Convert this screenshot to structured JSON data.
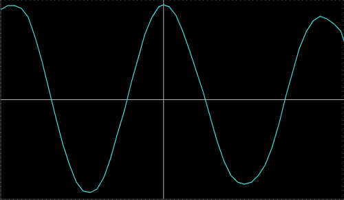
{
  "chart_data": {
    "type": "line",
    "x": [
      -4.09,
      -3.91,
      -3.74,
      -3.57,
      -3.4,
      -3.22,
      -3.05,
      -2.88,
      -2.71,
      -2.53,
      -2.36,
      -2.19,
      -2.02,
      -1.84,
      -1.67,
      -1.5,
      -1.33,
      -1.16,
      -0.98,
      -0.81,
      -0.64,
      -0.47,
      -0.29,
      -0.12,
      0,
      0.14,
      0.31,
      0.48,
      0.66,
      0.83,
      1.0,
      1.17,
      1.34,
      1.52,
      1.69,
      1.86,
      2.03,
      2.21,
      2.38,
      2.55,
      2.72,
      2.9,
      3.07,
      3.24,
      3.41,
      3.59,
      3.76,
      3.93,
      4.1,
      4.28,
      4.45,
      4.53
    ],
    "values": [
      2.26,
      2.36,
      2.36,
      2.29,
      2.07,
      1.55,
      0.95,
      0.26,
      -0.43,
      -1.12,
      -1.64,
      -2.07,
      -2.29,
      -2.33,
      -2.24,
      -1.95,
      -1.47,
      -0.86,
      -0.26,
      0.43,
      1.03,
      1.64,
      2.07,
      2.33,
      2.38,
      2.33,
      2.12,
      1.72,
      1.21,
      0.69,
      0.17,
      -0.43,
      -1.03,
      -1.55,
      -1.9,
      -2.07,
      -2.12,
      -2.07,
      -1.9,
      -1.64,
      -1.21,
      -0.6,
      0.09,
      0.69,
      1.29,
      1.72,
      1.98,
      2.09,
      2.03,
      1.9,
      1.72,
      1.47
    ],
    "color": "#3ee0e0",
    "xlim": [
      -4.09,
      4.53
    ],
    "ylim": [
      -2.5,
      2.5
    ],
    "xticks": [
      -4,
      -3,
      -2,
      -1,
      0,
      1,
      2,
      3,
      4
    ],
    "yticks": [
      -2,
      -1,
      0,
      1,
      2
    ],
    "grid": true,
    "tick_labels": false
  }
}
